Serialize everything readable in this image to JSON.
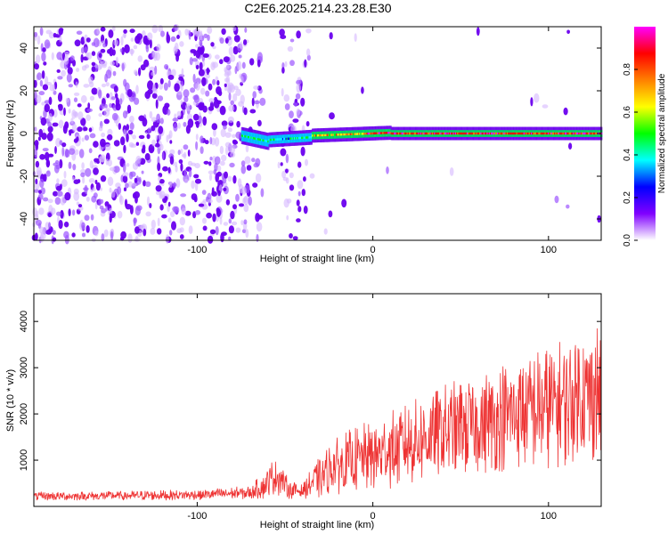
{
  "title": "C2E6.2025.214.23.28.E30",
  "chart_data": [
    {
      "type": "heatmap",
      "xlabel": "Height of straight line (km)",
      "ylabel": "Frequency (Hz)",
      "xlim": [
        -193,
        130
      ],
      "ylim": [
        -50,
        50
      ],
      "xticks": [
        -100,
        0,
        100
      ],
      "yticks": [
        -40,
        -20,
        0,
        20,
        40
      ],
      "colorbar": {
        "label": "Normalized spectral amplitude",
        "range": [
          0,
          1
        ],
        "ticks": [
          "0.0",
          "0.2",
          "0.4",
          "0.6",
          "0.8"
        ],
        "colors": [
          "#ffffff",
          "#8000ff",
          "#0000ff",
          "#00ffff",
          "#00ff00",
          "#ffff00",
          "#ff8000",
          "#ff0000",
          "#ff00ff"
        ]
      },
      "regions": [
        {
          "x": [
            -193,
            -65
          ],
          "f": [
            -50,
            50
          ],
          "amplitude": 0.15,
          "desc": "noise"
        },
        {
          "x": [
            -60,
            -35
          ],
          "f": [
            -50,
            50
          ],
          "amplitude": 0.1,
          "desc": "noise"
        },
        {
          "x": [
            -75,
            -35
          ],
          "f": [
            -5,
            2
          ],
          "amplitude": 0.35
        },
        {
          "x": [
            -35,
            130
          ],
          "f": [
            -2,
            2
          ],
          "amplitude": 0.9
        }
      ]
    },
    {
      "type": "line",
      "xlabel": "Height of straight line (km)",
      "ylabel": "SNR (10 * v/v)",
      "xlim": [
        -193,
        130
      ],
      "ylim": [
        0,
        4600
      ],
      "xticks": [
        -100,
        0,
        100
      ],
      "yticks": [
        1000,
        2000,
        3000,
        4000
      ],
      "color": "#ee3333",
      "envelope": {
        "x": [
          -193,
          -150,
          -100,
          -70,
          -62,
          -55,
          -48,
          -40,
          -32,
          -20,
          0,
          20,
          40,
          60,
          80,
          100,
          120,
          130
        ],
        "mean": [
          220,
          230,
          250,
          300,
          450,
          700,
          380,
          320,
          600,
          900,
          1100,
          1350,
          1600,
          1800,
          2000,
          2150,
          2400,
          2500
        ],
        "spread": [
          100,
          100,
          120,
          150,
          300,
          450,
          220,
          150,
          450,
          650,
          800,
          900,
          1050,
          1150,
          1250,
          1350,
          1500,
          1600
        ]
      }
    }
  ]
}
